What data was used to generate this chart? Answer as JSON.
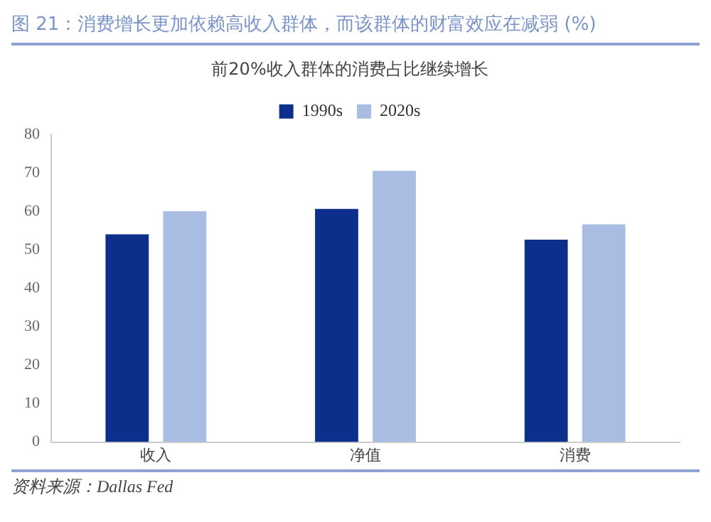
{
  "chart_data": {
    "type": "bar",
    "title": "图 21：消费增长更加依赖高收入群体，而该群体的财富效应在减弱 (%)",
    "subtitle": "前20%收入群体的消费占比继续增长",
    "categories": [
      "收入",
      "净值",
      "消费"
    ],
    "series": [
      {
        "name": "1990s",
        "color": "#0b2f8a",
        "values": [
          54,
          60.6,
          52.6
        ]
      },
      {
        "name": "2020s",
        "color": "#a9bde3",
        "values": [
          60,
          70.5,
          56.6
        ]
      }
    ],
    "ylim": [
      0,
      80
    ],
    "yticks": [
      0,
      10,
      20,
      30,
      40,
      50,
      60,
      70,
      80
    ],
    "grid": false,
    "legend": "top",
    "annotations": [
      "资料来源：Dallas Fed"
    ]
  }
}
